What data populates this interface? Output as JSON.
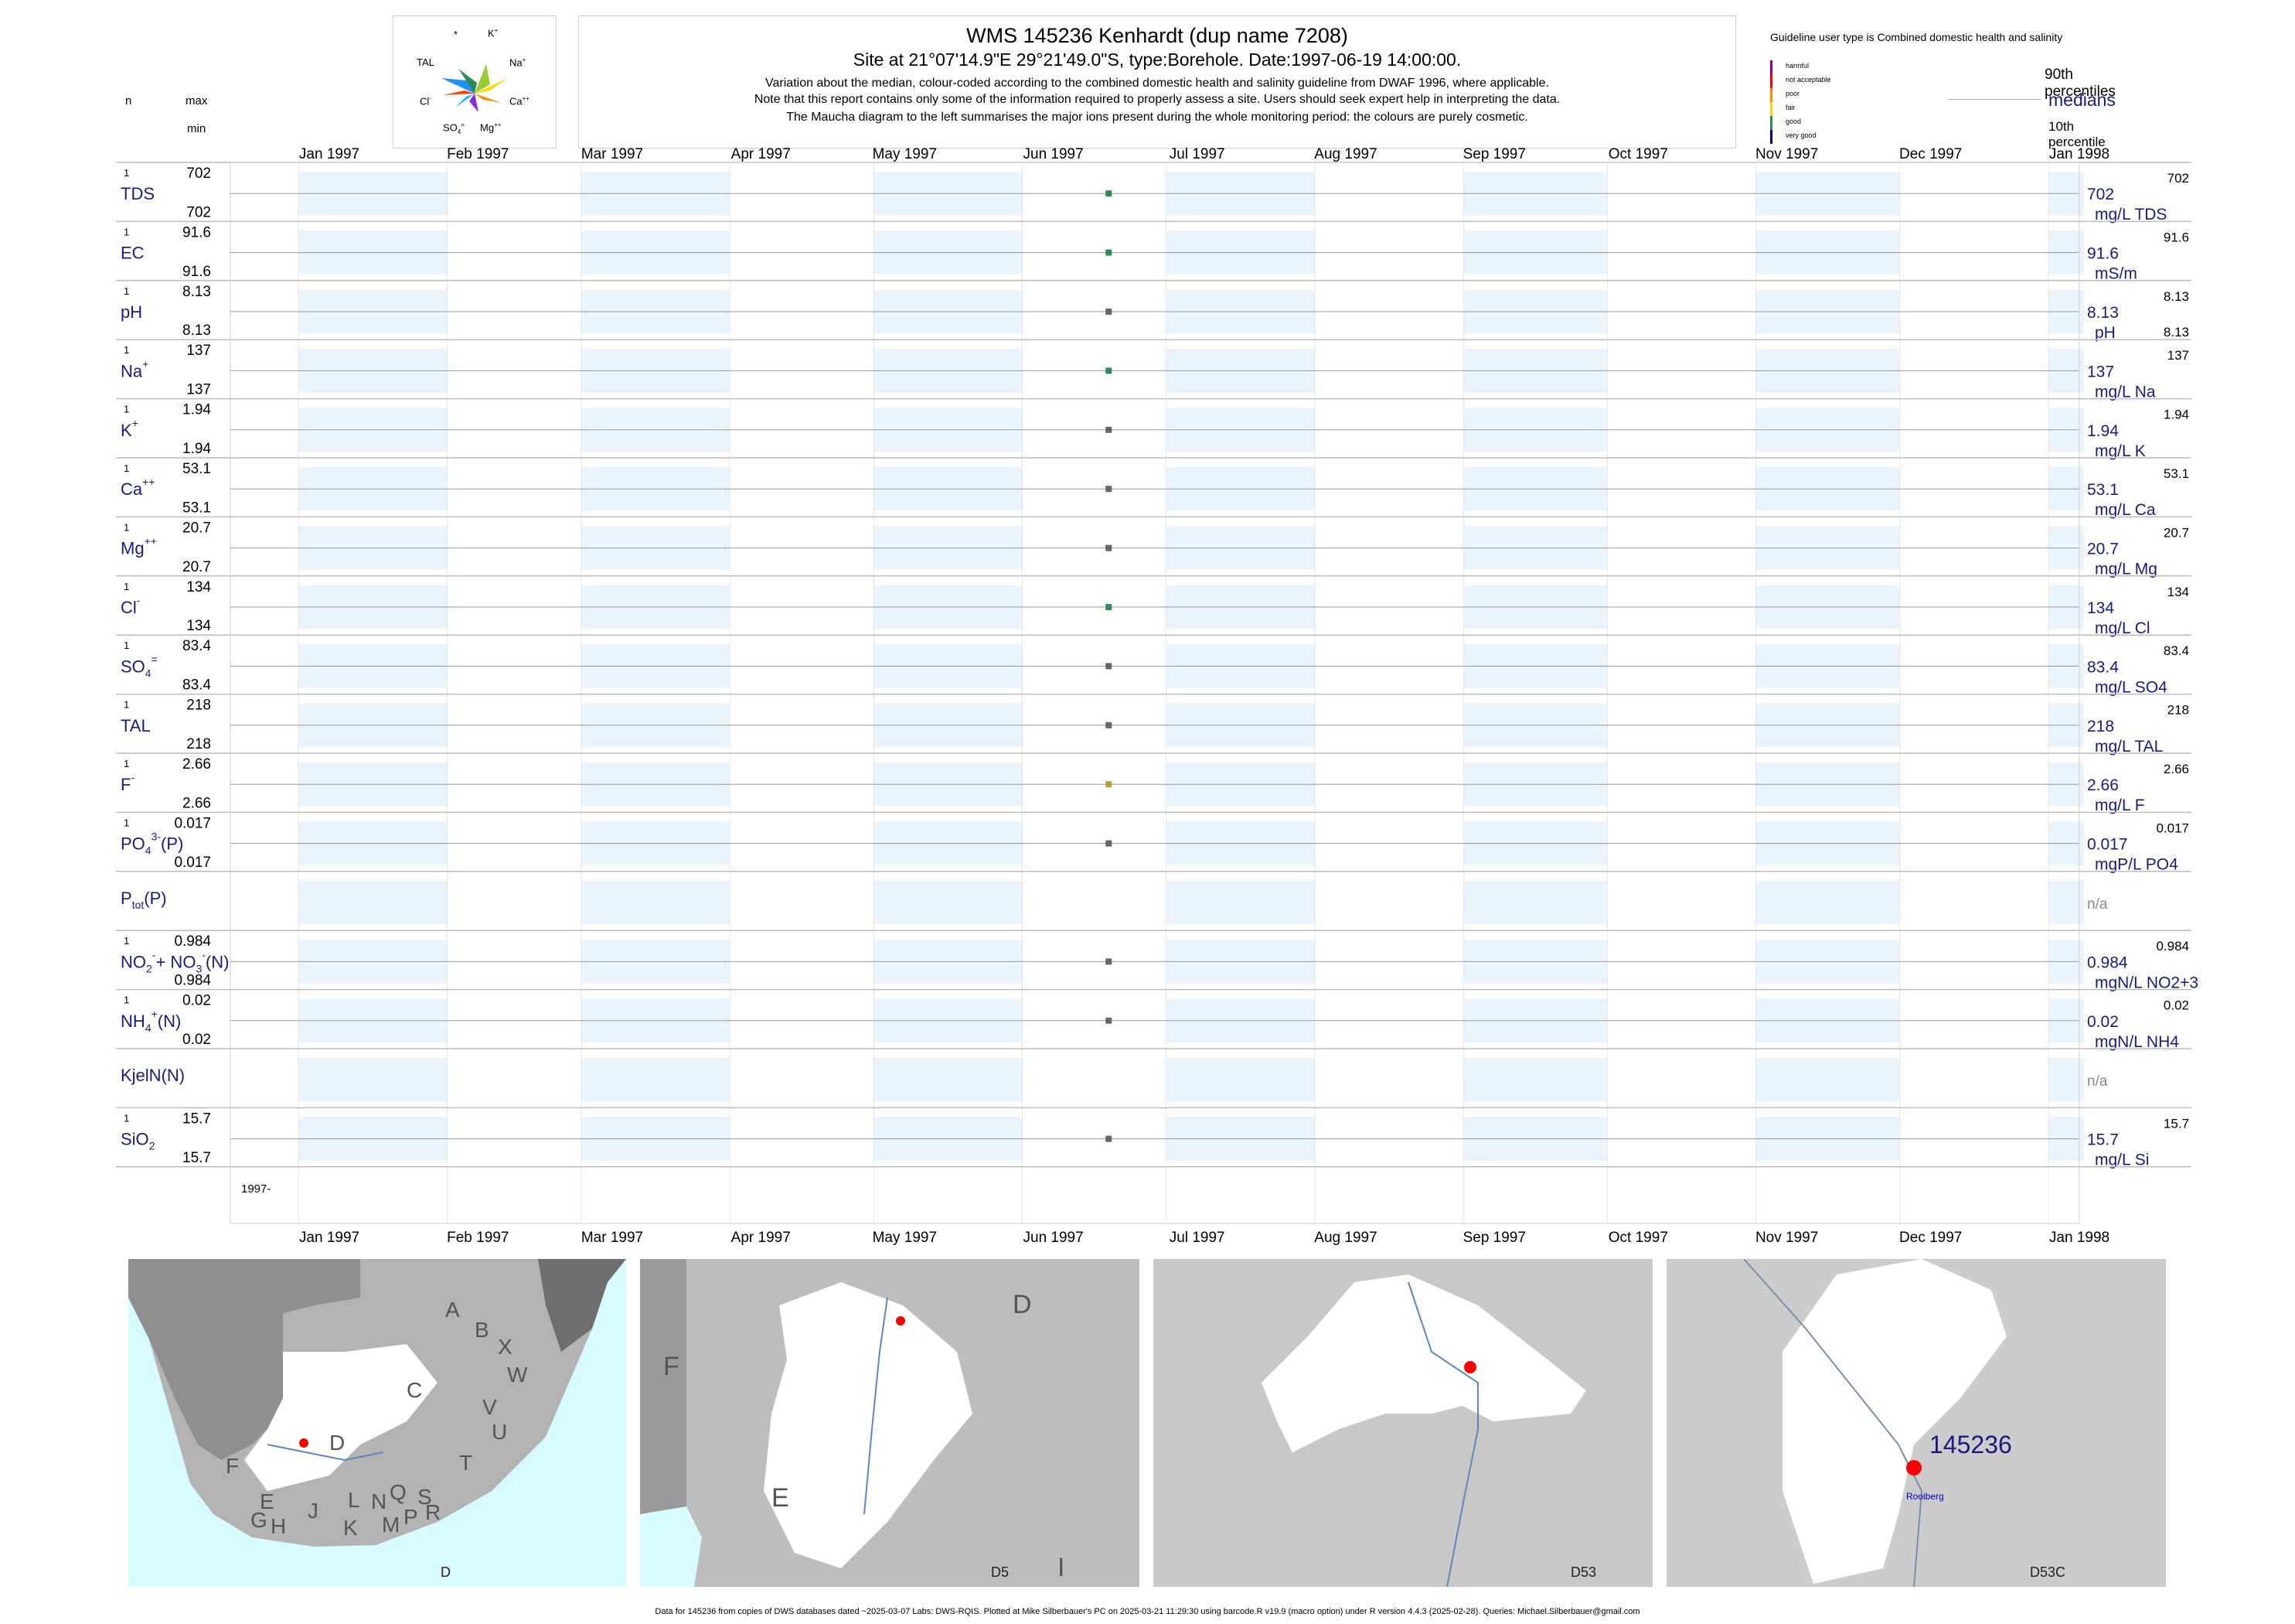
{
  "header": {
    "title": "WMS 145236  Kenhardt (dup name 7208)",
    "subtitle": "Site at 21°07'14.9\"E 29°21'49.0\"S, type:Borehole. Date:1997-06-19 14:00:00.",
    "note1": "Variation about the median,  colour-coded according to the combined domestic health and salinity guideline from DWAF 1996, where applicable.",
    "note2": "Note that this report contains only some of the information required to properly assess a site. Users should seek expert help in interpreting the data.",
    "note3": "The Maucha diagram to the left summarises the major ions present during the whole monitoring period: the colours are purely cosmetic."
  },
  "maucha": {
    "labels": {
      "star": "*",
      "k": "K",
      "k_sup": "+",
      "tal": "TAL",
      "na": "Na",
      "na_sup": "+",
      "cl": "Cl",
      "cl_sup": "-",
      "ca": "Ca",
      "ca_sup": "++",
      "so4": "SO",
      "so4_sub": "4",
      "so4_sup": "=",
      "mg": "Mg",
      "mg_sup": "++"
    },
    "colors": [
      "#2e8b57",
      "#1e90ff",
      "#ffd700",
      "#ff4500",
      "#9acd32",
      "#00bfff",
      "#ff8c00",
      "#8a2be2"
    ]
  },
  "legend": {
    "guideline": "Guideline user type is Combined domestic health and salinity",
    "categories": [
      {
        "label": "harmful",
        "color": "#8b008b"
      },
      {
        "label": "not acceptable",
        "color": "#ff0000"
      },
      {
        "label": "poor",
        "color": "#ff8c00"
      },
      {
        "label": "fair",
        "color": "#ffd700"
      },
      {
        "label": "good",
        "color": "#2e8b57"
      },
      {
        "label": "very good",
        "color": "#00008b"
      }
    ],
    "p90": "90th percentiles",
    "medians": "medians",
    "p10": "10th percentile"
  },
  "column_headers": {
    "n": "n",
    "max": "max",
    "min": "min"
  },
  "chart_data": {
    "type": "scatter",
    "x_axis_labels": [
      "Jan 1997",
      "Feb 1997",
      "Mar 1997",
      "Apr 1997",
      "May 1997",
      "Jun 1997",
      "Jul 1997",
      "Aug 1997",
      "Sep 1997",
      "Oct 1997",
      "Nov 1997",
      "Dec 1997",
      "Jan 1998"
    ],
    "xlim": [
      "1997-01-01",
      "1998-01-01"
    ],
    "sample_date": "1997-06-19",
    "year_label": "1997-",
    "variables": [
      {
        "label": "TDS",
        "sup": "",
        "sub": "",
        "n": "1",
        "max": "702",
        "min": "702",
        "median": "702",
        "unit": "mg/L TDS",
        "p90": "702",
        "p10": "",
        "color": "#2e8b57"
      },
      {
        "label": "EC",
        "sup": "",
        "sub": "",
        "n": "1",
        "max": "91.6",
        "min": "91.6",
        "median": "91.6",
        "unit": "mS/m",
        "p90": "91.6",
        "p10": "",
        "color": "#2e8b57"
      },
      {
        "label": "pH",
        "sup": "",
        "sub": "",
        "n": "1",
        "max": "8.13",
        "min": "8.13",
        "median": "8.13",
        "unit": "pH",
        "p90": "8.13",
        "p10": "8.13",
        "color": "#666666"
      },
      {
        "label": "Na",
        "sup": "+",
        "sub": "",
        "n": "1",
        "max": "137",
        "min": "137",
        "median": "137",
        "unit": "mg/L Na",
        "p90": "137",
        "p10": "",
        "color": "#2e8b57"
      },
      {
        "label": "K",
        "sup": "+",
        "sub": "",
        "n": "1",
        "max": "1.94",
        "min": "1.94",
        "median": "1.94",
        "unit": "mg/L K",
        "p90": "1.94",
        "p10": "",
        "color": "#666666"
      },
      {
        "label": "Ca",
        "sup": "++",
        "sub": "",
        "n": "1",
        "max": "53.1",
        "min": "53.1",
        "median": "53.1",
        "unit": "mg/L Ca",
        "p90": "53.1",
        "p10": "",
        "color": "#666666"
      },
      {
        "label": "Mg",
        "sup": "++",
        "sub": "",
        "n": "1",
        "max": "20.7",
        "min": "20.7",
        "median": "20.7",
        "unit": "mg/L Mg",
        "p90": "20.7",
        "p10": "",
        "color": "#666666"
      },
      {
        "label": "Cl",
        "sup": "-",
        "sub": "",
        "n": "1",
        "max": "134",
        "min": "134",
        "median": "134",
        "unit": "mg/L Cl",
        "p90": "134",
        "p10": "",
        "color": "#2e8b57"
      },
      {
        "label": "SO",
        "sup": "=",
        "sub": "4",
        "n": "1",
        "max": "83.4",
        "min": "83.4",
        "median": "83.4",
        "unit": "mg/L SO4",
        "p90": "83.4",
        "p10": "",
        "color": "#666666"
      },
      {
        "label": "TAL",
        "sup": "",
        "sub": "",
        "n": "1",
        "max": "218",
        "min": "218",
        "median": "218",
        "unit": "mg/L TAL",
        "p90": "218",
        "p10": "",
        "color": "#666666"
      },
      {
        "label": "F",
        "sup": "-",
        "sub": "",
        "n": "1",
        "max": "2.66",
        "min": "2.66",
        "median": "2.66",
        "unit": "mg/L F",
        "p90": "2.66",
        "p10": "",
        "color": "#b8a040"
      },
      {
        "label": "PO",
        "sup": "3-",
        "sub": "4",
        "suffix": "(P)",
        "n": "1",
        "max": "0.017",
        "min": "0.017",
        "median": "0.017",
        "unit": "mgP/L PO4",
        "p90": "0.017",
        "p10": "",
        "color": "#666666"
      },
      {
        "label": "P",
        "sup": "",
        "sub": "tot",
        "suffix": "(P)",
        "n": "",
        "max": "",
        "min": "",
        "median": "n/a",
        "unit": "",
        "p90": "",
        "p10": "",
        "color": ""
      },
      {
        "label": "NO",
        "sup": "-",
        "sub": "2",
        "suffix": "+ NO",
        "sup2": "-",
        "sub2": "3",
        "suffix2": "(N)",
        "n": "1",
        "max": "0.984",
        "min": "0.984",
        "median": "0.984",
        "unit": "mgN/L NO2+3",
        "p90": "0.984",
        "p10": "",
        "color": "#666666"
      },
      {
        "label": "NH",
        "sup": "+",
        "sub": "4",
        "suffix": "(N)",
        "n": "1",
        "max": "0.02",
        "min": "0.02",
        "median": "0.02",
        "unit": "mgN/L NH4",
        "p90": "0.02",
        "p10": "",
        "color": "#666666"
      },
      {
        "label": "KjelN(N)",
        "sup": "",
        "sub": "",
        "n": "",
        "max": "",
        "min": "",
        "median": "n/a",
        "unit": "",
        "p90": "",
        "p10": "",
        "color": ""
      },
      {
        "label": "SiO",
        "sup": "",
        "sub": "2",
        "n": "1",
        "max": "15.7",
        "min": "15.7",
        "median": "15.7",
        "unit": "mg/L Si",
        "p90": "15.7",
        "p10": "",
        "color": "#666666"
      }
    ]
  },
  "maps": [
    {
      "caption": "D",
      "regions": [
        "A",
        "B",
        "X",
        "C",
        "W",
        "D",
        "V",
        "U",
        "F",
        "T",
        "E",
        "J",
        "L",
        "N",
        "Q",
        "S",
        "R",
        "G",
        "H",
        "K",
        "M",
        "P"
      ]
    },
    {
      "caption": "D5",
      "regions": [
        "D",
        "F",
        "E",
        "I"
      ]
    },
    {
      "caption": "D53",
      "regions": []
    },
    {
      "caption": "D53C",
      "site": "145236",
      "place": "Rooiberg"
    }
  ],
  "footer": "Data for 145236 from copies of DWS databases dated ~2025-03-07 Labs: DWS-RQIS. Plotted at Mike Silberbauer's PC on 2025-03-21 11:29:30 using barcode.R v19.9 (macro option) under R version 4.4.3 (2025-02-28). Queries: Michael.Silberbauer@gmail.com"
}
